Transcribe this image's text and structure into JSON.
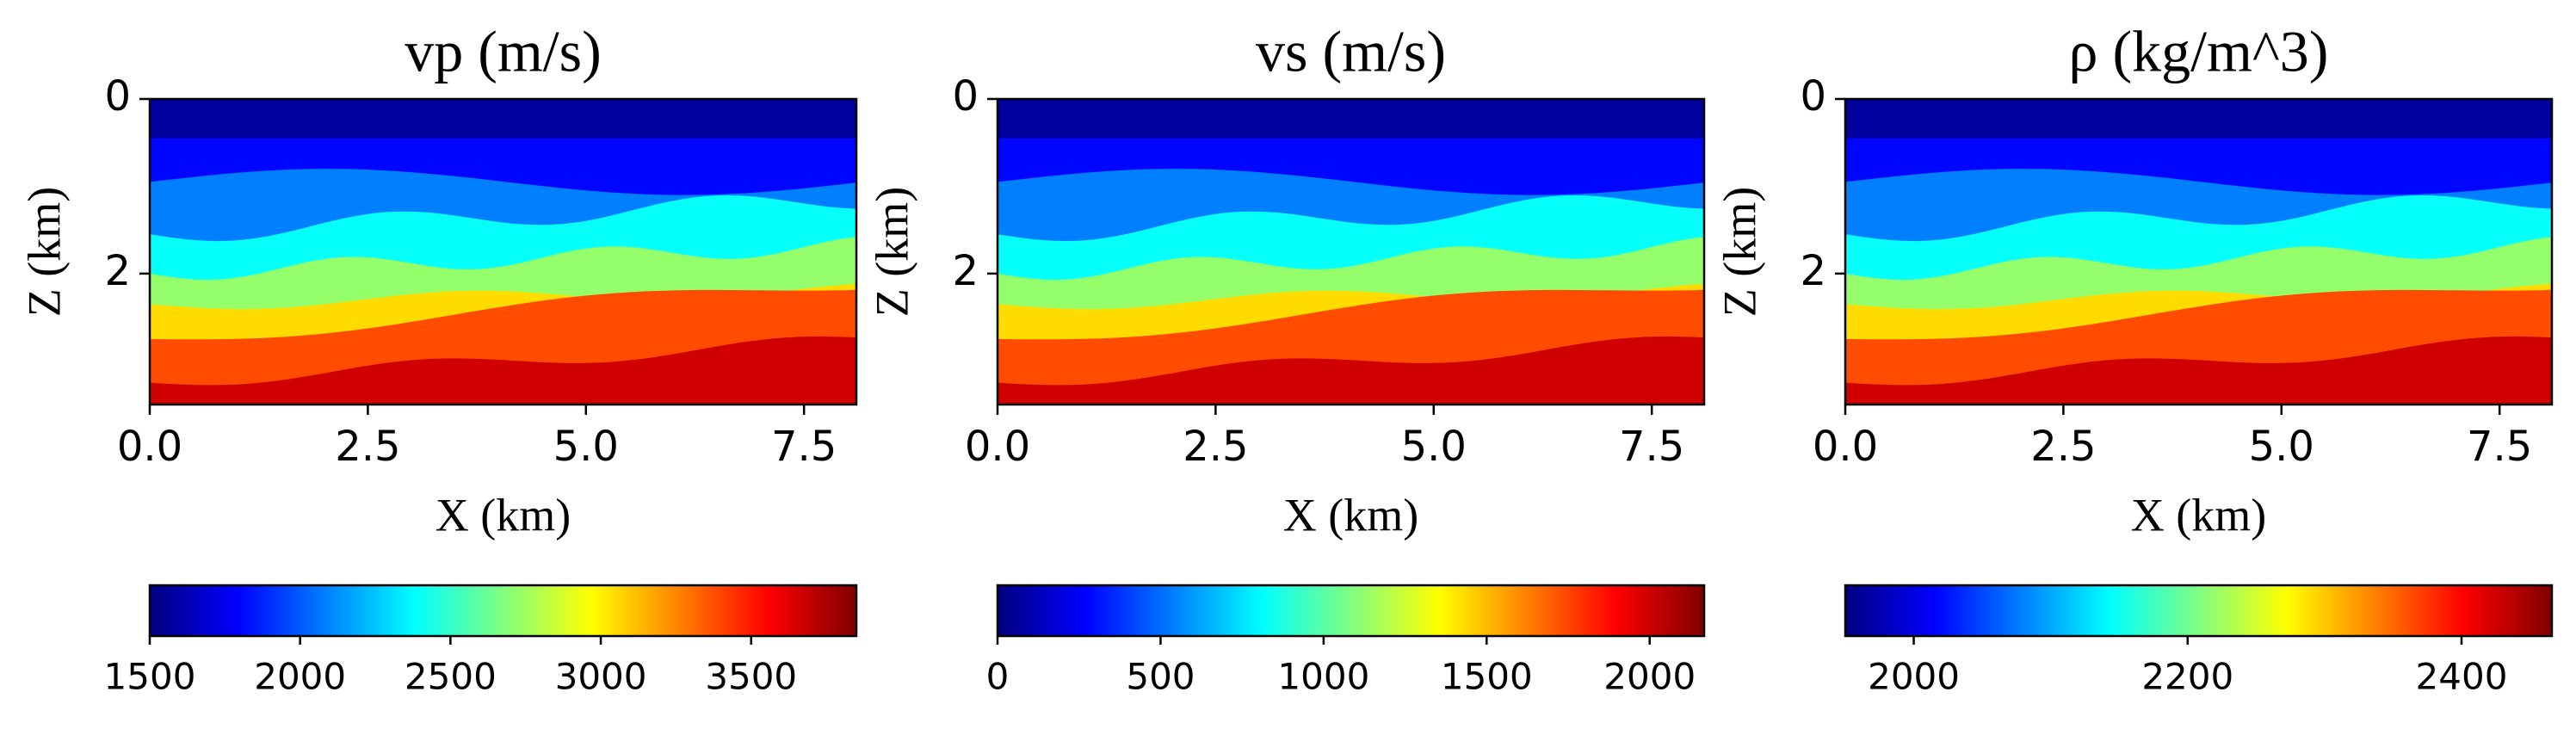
{
  "chart_data": [
    {
      "type": "image",
      "title": "vp (m/s)",
      "xlabel": "X (km)",
      "ylabel": "Z (km)",
      "xlim": [
        0,
        8.1
      ],
      "ylim": [
        0,
        3.5
      ],
      "y_inverted": true,
      "colormap": "jet",
      "xticks": [
        {
          "value": 0,
          "label": "0.0"
        },
        2.5,
        {
          "value": 5,
          "label": "5.0"
        },
        7.5
      ],
      "yticks": [
        0,
        2
      ],
      "colorbar": {
        "clim": [
          1500,
          3850
        ],
        "ticks": [
          1500,
          2000,
          2500,
          3000,
          3500
        ]
      }
    },
    {
      "type": "image",
      "title": "vs (m/s)",
      "xlabel": "X (km)",
      "ylabel": "Z (km)",
      "xlim": [
        0,
        8.1
      ],
      "ylim": [
        0,
        3.5
      ],
      "y_inverted": true,
      "colormap": "jet",
      "xticks": [
        {
          "value": 0,
          "label": "0.0"
        },
        2.5,
        {
          "value": 5,
          "label": "5.0"
        },
        7.5
      ],
      "yticks": [
        0,
        2
      ],
      "colorbar": {
        "clim": [
          0,
          2167
        ],
        "ticks": [
          0,
          500,
          1000,
          1500,
          2000
        ]
      }
    },
    {
      "type": "image",
      "title": "ρ (kg/m^3)",
      "xlabel": "X (km)",
      "ylabel": "Z (km)",
      "xlim": [
        0,
        8.1
      ],
      "ylim": [
        0,
        3.5
      ],
      "y_inverted": true,
      "colormap": "jet",
      "xticks": [
        {
          "value": 0,
          "label": "0.0"
        },
        2.5,
        {
          "value": 5,
          "label": "5.0"
        },
        7.5
      ],
      "yticks": [
        0,
        2
      ],
      "colorbar": {
        "clim": [
          1950,
          2466
        ],
        "ticks": [
          2000,
          2200,
          2400
        ]
      }
    }
  ]
}
